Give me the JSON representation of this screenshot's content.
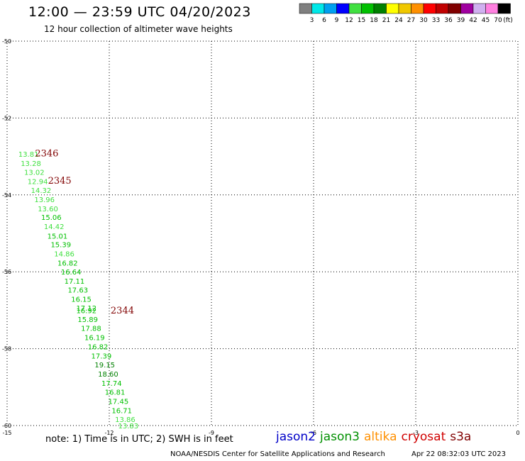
{
  "header": {
    "title": "12:00 — 23:59 UTC 04/20/2023",
    "subtitle": "12 hour collection of altimeter wave heights"
  },
  "colorbar": {
    "unit": "(ft)",
    "bins": [
      {
        "label": "3",
        "color": "#808080"
      },
      {
        "label": "6",
        "color": "#00e8e8"
      },
      {
        "label": "9",
        "color": "#00a0f0"
      },
      {
        "label": "12",
        "color": "#0000ff"
      },
      {
        "label": "15",
        "color": "#40e040"
      },
      {
        "label": "18",
        "color": "#00c000"
      },
      {
        "label": "21",
        "color": "#008000"
      },
      {
        "label": "24",
        "color": "#ffff00"
      },
      {
        "label": "27",
        "color": "#f0c800"
      },
      {
        "label": "30",
        "color": "#ff9000"
      },
      {
        "label": "33",
        "color": "#ff0000"
      },
      {
        "label": "36",
        "color": "#c00000"
      },
      {
        "label": "39",
        "color": "#800000"
      },
      {
        "label": "42",
        "color": "#a000a0"
      },
      {
        "label": "45",
        "color": "#d0b0f0"
      },
      {
        "label": "70",
        "color": "#ff80e0"
      },
      {
        "label": "",
        "color": "#000000"
      }
    ]
  },
  "chart_data": {
    "type": "scatter",
    "xlim": [
      -15,
      0
    ],
    "ylim": [
      -60,
      -50
    ],
    "x_ticks": [
      -15,
      -12,
      -9,
      -6,
      -3,
      0
    ],
    "y_ticks": [
      -50,
      -52,
      -54,
      -56,
      -58,
      -60
    ],
    "x_tick_labels": [
      "-15",
      "-12",
      "-9",
      "-6",
      "-3",
      "0"
    ],
    "y_tick_labels": [
      "-50",
      "-52",
      "-54",
      "-56",
      "-58",
      "-60"
    ],
    "grid": true,
    "points": [
      {
        "lon": -14.67,
        "lat": -52.93,
        "swh": "13.81",
        "color": "#40e040"
      },
      {
        "lon": -14.6,
        "lat": -53.17,
        "swh": "13.28",
        "color": "#40e040"
      },
      {
        "lon": -14.5,
        "lat": -53.4,
        "swh": "13.02",
        "color": "#40e040"
      },
      {
        "lon": -14.4,
        "lat": -53.64,
        "swh": "12.94",
        "color": "#40e040"
      },
      {
        "lon": -14.3,
        "lat": -53.87,
        "swh": "14.32",
        "color": "#40e040"
      },
      {
        "lon": -14.2,
        "lat": -54.11,
        "swh": "13.96",
        "color": "#40e040"
      },
      {
        "lon": -14.1,
        "lat": -54.35,
        "swh": "13.60",
        "color": "#40e040"
      },
      {
        "lon": -14.0,
        "lat": -54.58,
        "swh": "15.06",
        "color": "#00c000"
      },
      {
        "lon": -13.92,
        "lat": -54.82,
        "swh": "14.42",
        "color": "#40e040"
      },
      {
        "lon": -13.82,
        "lat": -55.06,
        "swh": "15.01",
        "color": "#00c000"
      },
      {
        "lon": -13.72,
        "lat": -55.29,
        "swh": "15.39",
        "color": "#00c000"
      },
      {
        "lon": -13.62,
        "lat": -55.53,
        "swh": "14.86",
        "color": "#40e040"
      },
      {
        "lon": -13.52,
        "lat": -55.77,
        "swh": "16.82",
        "color": "#00c000"
      },
      {
        "lon": -13.42,
        "lat": -56.0,
        "swh": "16.64",
        "color": "#00c000"
      },
      {
        "lon": -13.32,
        "lat": -56.24,
        "swh": "17.11",
        "color": "#00c000"
      },
      {
        "lon": -13.22,
        "lat": -56.47,
        "swh": "17.63",
        "color": "#00c000"
      },
      {
        "lon": -13.12,
        "lat": -56.71,
        "swh": "16.15",
        "color": "#00c000"
      },
      {
        "lon": -12.97,
        "lat": -56.94,
        "swh": "17.12",
        "color": "#00c000"
      },
      {
        "lon": -12.97,
        "lat": -57.0,
        "swh": "16.92",
        "color": "#00c000"
      },
      {
        "lon": -12.93,
        "lat": -57.23,
        "swh": "15.89",
        "color": "#00c000"
      },
      {
        "lon": -12.83,
        "lat": -57.46,
        "swh": "17.88",
        "color": "#00c000"
      },
      {
        "lon": -12.73,
        "lat": -57.7,
        "swh": "16.19",
        "color": "#00c000"
      },
      {
        "lon": -12.63,
        "lat": -57.94,
        "swh": "16.82",
        "color": "#00c000"
      },
      {
        "lon": -12.53,
        "lat": -58.18,
        "swh": "17.39",
        "color": "#00c000"
      },
      {
        "lon": -12.43,
        "lat": -58.41,
        "swh": "19.15",
        "color": "#008000"
      },
      {
        "lon": -12.33,
        "lat": -58.65,
        "swh": "18.60",
        "color": "#008000"
      },
      {
        "lon": -12.23,
        "lat": -58.89,
        "swh": "17.74",
        "color": "#00c000"
      },
      {
        "lon": -12.13,
        "lat": -59.12,
        "swh": "16.81",
        "color": "#00c000"
      },
      {
        "lon": -12.03,
        "lat": -59.36,
        "swh": "17.45",
        "color": "#00c000"
      },
      {
        "lon": -11.93,
        "lat": -59.6,
        "swh": "16.71",
        "color": "#00c000"
      },
      {
        "lon": -11.83,
        "lat": -59.83,
        "swh": "13.86",
        "color": "#40e040"
      },
      {
        "lon": -11.74,
        "lat": -60.0,
        "swh": "13.83",
        "color": "#40e040"
      }
    ],
    "pass_labels": [
      {
        "text": "2346",
        "lon": -14.18,
        "lat": -52.91,
        "color": "#800000"
      },
      {
        "text": "2345",
        "lon": -13.8,
        "lat": -53.62,
        "color": "#800000"
      },
      {
        "text": "2344",
        "lon": -11.96,
        "lat": -56.99,
        "color": "#800000"
      }
    ]
  },
  "footer": {
    "note": "note: 1) Time is in UTC; 2) SWH is in feet",
    "satellites": [
      {
        "name": "jason2",
        "color": "#0000c8"
      },
      {
        "name": "jason3",
        "color": "#009000"
      },
      {
        "name": "altika",
        "color": "#ff9000"
      },
      {
        "name": "cryosat",
        "color": "#d00000"
      },
      {
        "name": "s3a",
        "color": "#800000"
      }
    ],
    "credit": "NOAA/NESDIS Center for Satellite Applications and Research",
    "timestamp": "Apr 22 08:32:03 UTC 2023"
  }
}
